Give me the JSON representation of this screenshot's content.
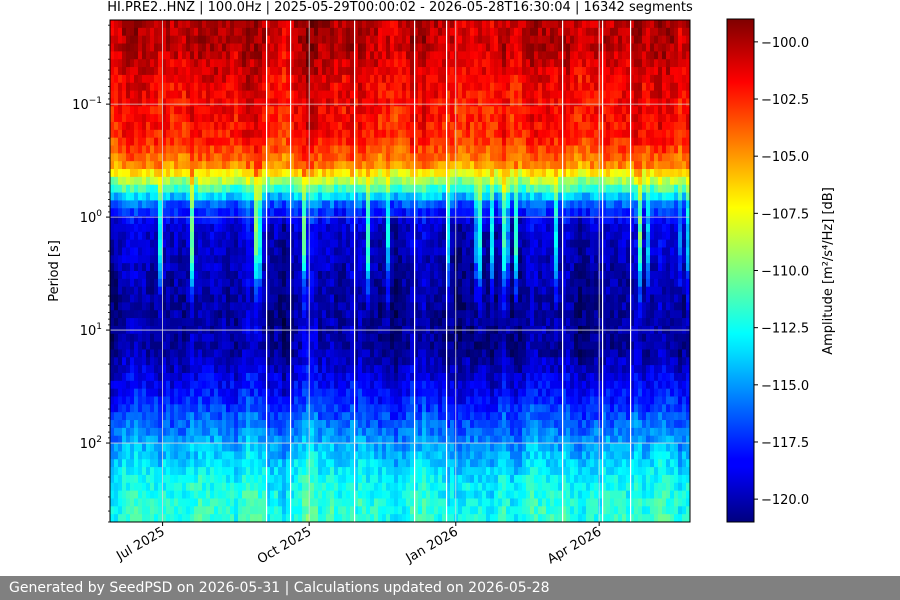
{
  "chart_data": {
    "type": "heatmap",
    "title": "HI.PRE2..HNZ | 100.0Hz | 2025-05-29T00:00:02 - 2026-05-28T16:30:04 | 16342 segments",
    "ylabel": "Period [s]",
    "y_scale": "log",
    "y_inverted": true,
    "ylim": [
      0.018,
      500
    ],
    "y_ticks": [
      {
        "value": 0.1,
        "base": "10",
        "exp": "−1"
      },
      {
        "value": 1,
        "base": "10",
        "exp": "0"
      },
      {
        "value": 10,
        "base": "10",
        "exp": "1"
      },
      {
        "value": 100,
        "base": "10",
        "exp": "2"
      }
    ],
    "xlim": [
      "2025-05-29",
      "2026-05-28"
    ],
    "x_ticks": [
      {
        "date": "2025-07-01",
        "label": "Jul 2025"
      },
      {
        "date": "2025-10-01",
        "label": "Oct 2025"
      },
      {
        "date": "2026-01-01",
        "label": "Jan 2026"
      },
      {
        "date": "2026-04-01",
        "label": "Apr 2026"
      }
    ],
    "grid": true,
    "colormap": "jet",
    "colorbar": {
      "label": "Amplitude [m²/s⁴/Hz] [dB]",
      "range": [
        -121,
        -99
      ],
      "ticks": [
        "-100.0",
        "-102.5",
        "-105.0",
        "-107.5",
        "-110.0",
        "-112.5",
        "-115.0",
        "-117.5",
        "-120.0"
      ]
    },
    "profile": [
      {
        "period": 0.018,
        "db": -100.5
      },
      {
        "period": 0.03,
        "db": -100.5
      },
      {
        "period": 0.06,
        "db": -101.5
      },
      {
        "period": 0.2,
        "db": -102.5
      },
      {
        "period": 0.35,
        "db": -105
      },
      {
        "period": 0.5,
        "db": -110
      },
      {
        "period": 0.8,
        "db": -117
      },
      {
        "period": 1.2,
        "db": -119.5
      },
      {
        "period": 5,
        "db": -120.5
      },
      {
        "period": 15,
        "db": -120.5
      },
      {
        "period": 40,
        "db": -118
      },
      {
        "period": 100,
        "db": -115
      },
      {
        "period": 200,
        "db": -113
      },
      {
        "period": 500,
        "db": -112
      }
    ]
  },
  "footer": {
    "text": "Generated by SeedPSD on 2026-05-31 | Calculations updated on 2026-05-28"
  }
}
